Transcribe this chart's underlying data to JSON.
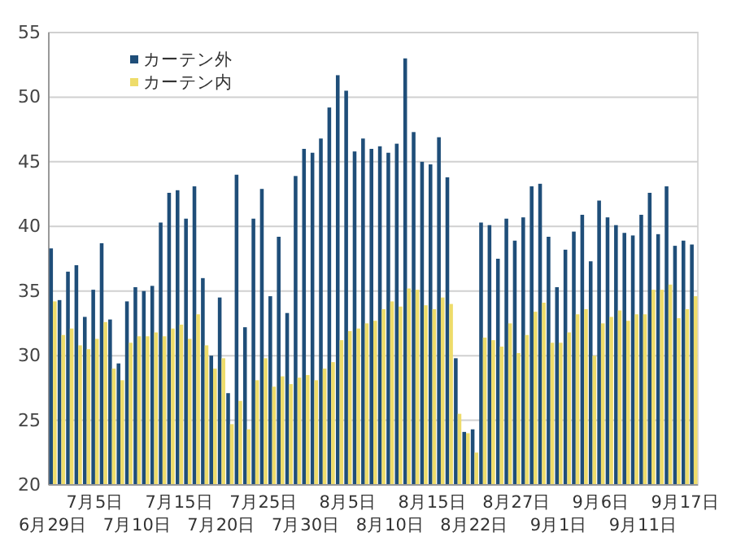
{
  "chart_data": {
    "type": "bar",
    "categories": [
      "6月29日",
      null,
      null,
      null,
      null,
      "7月5日",
      null,
      null,
      null,
      null,
      "7月10日",
      null,
      null,
      null,
      null,
      "7月15日",
      null,
      null,
      null,
      null,
      "7月20日",
      null,
      null,
      null,
      null,
      "7月25日",
      null,
      null,
      null,
      null,
      "7月30日",
      null,
      null,
      null,
      null,
      "8月5日",
      null,
      null,
      null,
      null,
      "8月10日",
      null,
      null,
      null,
      null,
      "8月15日",
      null,
      null,
      null,
      null,
      "8月22日",
      null,
      null,
      null,
      null,
      "8月27日",
      null,
      null,
      null,
      null,
      "9月1日",
      null,
      null,
      null,
      null,
      "9月6日",
      null,
      null,
      null,
      null,
      "9月11日",
      null,
      null,
      null,
      null,
      "9月17日",
      null
    ],
    "series": [
      {
        "name": "カーテン外",
        "color": "#1f4e79",
        "values": [
          38.3,
          34.3,
          36.5,
          37.0,
          33.0,
          35.1,
          38.7,
          32.8,
          29.4,
          34.2,
          35.3,
          35.0,
          35.4,
          40.3,
          42.6,
          42.8,
          40.6,
          43.1,
          36.0,
          30.0,
          34.5,
          27.1,
          44.0,
          32.2,
          40.6,
          42.9,
          34.6,
          39.2,
          33.3,
          43.9,
          46.0,
          45.7,
          46.8,
          49.2,
          51.7,
          50.5,
          45.8,
          46.8,
          46.0,
          46.2,
          45.7,
          46.4,
          53.0,
          47.3,
          45.0,
          44.8,
          46.9,
          43.8,
          29.8,
          24.1,
          24.3,
          40.3,
          40.1,
          37.5,
          40.6,
          38.9,
          40.7,
          43.1,
          43.3,
          39.2,
          35.3,
          38.2,
          39.6,
          40.9,
          37.3,
          42.0,
          40.7,
          40.1,
          39.5,
          39.3,
          40.9,
          42.6,
          39.4,
          43.1,
          38.5,
          38.9,
          38.6
        ]
      },
      {
        "name": "カーテン内",
        "color": "#eedc6a",
        "values": [
          34.2,
          31.6,
          32.1,
          30.8,
          30.5,
          31.3,
          32.6,
          29.0,
          28.1,
          31.0,
          31.5,
          31.5,
          31.8,
          31.5,
          32.1,
          32.4,
          31.3,
          33.2,
          30.8,
          29.0,
          29.8,
          24.7,
          26.5,
          24.3,
          28.1,
          29.8,
          27.6,
          28.4,
          27.8,
          28.3,
          28.5,
          28.1,
          29.0,
          29.5,
          31.2,
          31.9,
          32.1,
          32.5,
          32.7,
          33.6,
          34.2,
          33.8,
          35.2,
          35.1,
          33.9,
          33.6,
          34.5,
          34.0,
          25.5,
          24.0,
          22.5,
          31.4,
          31.2,
          30.7,
          32.5,
          30.2,
          31.6,
          33.4,
          34.1,
          31.0,
          31.0,
          31.8,
          33.2,
          33.6,
          30.0,
          32.5,
          33.0,
          33.5,
          32.7,
          33.2,
          33.2,
          35.1,
          35.1,
          35.5,
          32.9,
          33.6,
          34.6
        ]
      }
    ],
    "ylim": [
      20,
      55
    ],
    "yticks": [
      20,
      25,
      30,
      35,
      40,
      45,
      50,
      55
    ],
    "grid": "y",
    "legend": "top left"
  }
}
